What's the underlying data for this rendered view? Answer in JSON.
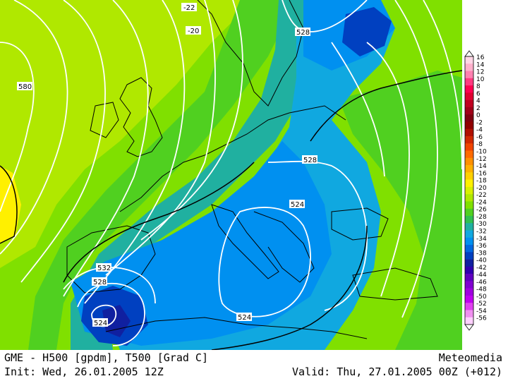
{
  "caption": {
    "model_field": "GME - H500 [gpdm], T500 [Grad C]",
    "init": "Init: Wed, 26.01.2005 12Z",
    "brand": "Meteomedia",
    "valid": "Valid: Thu, 27.01.2005 00Z (+012)"
  },
  "legend": {
    "levels": [
      "16",
      "14",
      "12",
      "10",
      "8",
      "6",
      "4",
      "2",
      "0",
      "-2",
      "-4",
      "-6",
      "-8",
      "-10",
      "-12",
      "-14",
      "-16",
      "-18",
      "-20",
      "-22",
      "-24",
      "-26",
      "-28",
      "-30",
      "-32",
      "-34",
      "-36",
      "-38",
      "-40",
      "-42",
      "-44",
      "-46",
      "-48",
      "-50",
      "-52",
      "-54",
      "-56"
    ],
    "colors": [
      "#ffd6e6",
      "#ffb0cc",
      "#ff80b0",
      "#ff3a80",
      "#ff0050",
      "#e00030",
      "#c00020",
      "#a00018",
      "#800010",
      "#900000",
      "#b01000",
      "#d02800",
      "#f04400",
      "#ff6a00",
      "#ff9000",
      "#ffb000",
      "#ffd000",
      "#fff000",
      "#d8f000",
      "#b0e800",
      "#80e000",
      "#50d020",
      "#30c050",
      "#20b0a0",
      "#10a8e0",
      "#0090f0",
      "#0068e0",
      "#0040c0",
      "#1020a0",
      "#3000b0",
      "#6000c0",
      "#8000d0",
      "#a000e0",
      "#c000f0",
      "#e040f0",
      "#f090f0",
      "#ffd0ff"
    ]
  },
  "contour_labels": {
    "h580": "580",
    "h528_north": "528",
    "h528_mid": "528",
    "h524_alps": "524",
    "h532_sw": "532",
    "h528_sw": "528",
    "h524_sw": "524",
    "h524_south": "524",
    "t_minus22": "-22",
    "t_minus20": "-20"
  }
}
